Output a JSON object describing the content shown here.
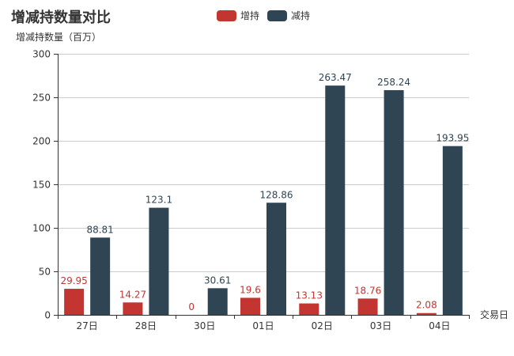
{
  "chart_data": {
    "type": "bar",
    "title": "增减持数量对比",
    "ylabel": "增减持数量（百万）",
    "xlabel": "交易日",
    "categories": [
      "27日",
      "28日",
      "30日",
      "01日",
      "02日",
      "03日",
      "04日"
    ],
    "ylim": [
      0,
      300
    ],
    "yticks": [
      0,
      50,
      100,
      150,
      200,
      250,
      300
    ],
    "grid": true,
    "legend_position": "top-center",
    "series": [
      {
        "name": "增持",
        "color": "#c23531",
        "values": [
          29.95,
          14.27,
          0,
          19.6,
          13.13,
          18.76,
          2.08
        ]
      },
      {
        "name": "减持",
        "color": "#2f4554",
        "values": [
          88.81,
          123.1,
          30.61,
          128.86,
          263.47,
          258.24,
          193.95
        ]
      }
    ]
  }
}
